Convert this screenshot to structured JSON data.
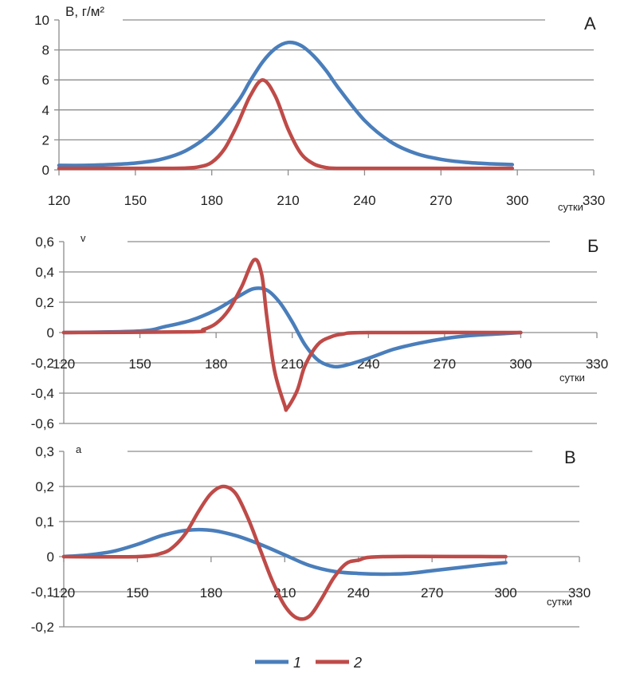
{
  "chart_data": [
    {
      "type": "line",
      "panel_label": "А",
      "ylabel": "В, г/м²",
      "xlabel": "сутки",
      "xlim": [
        120,
        330
      ],
      "ylim": [
        0,
        10
      ],
      "x_ticks": [
        "120",
        "150",
        "180",
        "210",
        "240",
        "270",
        "300",
        "330"
      ],
      "y_ticks": [
        "0",
        "2",
        "4",
        "6",
        "8",
        "10"
      ],
      "grid": true,
      "series": [
        {
          "name": "1",
          "color": "#4a7ebb",
          "x": [
            120,
            130,
            140,
            150,
            160,
            170,
            180,
            190,
            195,
            200,
            205,
            210,
            215,
            220,
            225,
            230,
            240,
            250,
            260,
            270,
            280,
            290,
            298
          ],
          "y": [
            0.3,
            0.3,
            0.35,
            0.45,
            0.7,
            1.3,
            2.5,
            4.5,
            5.9,
            7.2,
            8.1,
            8.5,
            8.3,
            7.6,
            6.6,
            5.4,
            3.3,
            1.9,
            1.1,
            0.7,
            0.5,
            0.4,
            0.35
          ]
        },
        {
          "name": "2",
          "color": "#be4b48",
          "x": [
            120,
            140,
            160,
            170,
            175,
            180,
            185,
            190,
            195,
            200,
            205,
            210,
            215,
            220,
            225,
            230,
            250,
            270,
            298
          ],
          "y": [
            0.1,
            0.1,
            0.1,
            0.12,
            0.2,
            0.5,
            1.4,
            3.0,
            4.9,
            6.0,
            4.9,
            2.7,
            1.1,
            0.4,
            0.15,
            0.1,
            0.1,
            0.1,
            0.1
          ]
        }
      ]
    },
    {
      "type": "line",
      "panel_label": "Б",
      "ylabel": "v",
      "xlabel": "сутки",
      "xlim": [
        120,
        330
      ],
      "ylim": [
        -0.6,
        0.6
      ],
      "x_ticks": [
        "120",
        "150",
        "180",
        "210",
        "240",
        "270",
        "300",
        "330"
      ],
      "y_ticks": [
        "-0,6",
        "-0,4",
        "-0,2",
        "0",
        "0,2",
        "0,4",
        "0,6"
      ],
      "grid": true,
      "series": [
        {
          "name": "1",
          "color": "#4a7ebb",
          "x": [
            120,
            150,
            160,
            170,
            180,
            190,
            195,
            200,
            205,
            210,
            215,
            220,
            225,
            230,
            240,
            250,
            260,
            270,
            280,
            290,
            300
          ],
          "y": [
            0,
            0.01,
            0.04,
            0.08,
            0.15,
            0.25,
            0.29,
            0.28,
            0.2,
            0.07,
            -0.08,
            -0.18,
            -0.22,
            -0.22,
            -0.17,
            -0.11,
            -0.07,
            -0.04,
            -0.02,
            -0.01,
            0
          ]
        },
        {
          "name": "2",
          "color": "#be4b48",
          "x": [
            120,
            170,
            175,
            180,
            185,
            190,
            195,
            198,
            200,
            203,
            207,
            208,
            212,
            215,
            220,
            225,
            230,
            240,
            300
          ],
          "y": [
            0,
            0.005,
            0.02,
            0.06,
            0.15,
            0.3,
            0.48,
            0.38,
            0.1,
            -0.25,
            -0.48,
            -0.5,
            -0.38,
            -0.22,
            -0.08,
            -0.03,
            -0.01,
            0,
            0
          ]
        }
      ]
    },
    {
      "type": "line",
      "panel_label": "В",
      "ylabel": "a",
      "xlabel": "сутки",
      "xlim": [
        120,
        330
      ],
      "ylim": [
        -0.2,
        0.3
      ],
      "x_ticks": [
        "120",
        "150",
        "180",
        "210",
        "240",
        "270",
        "300",
        "330"
      ],
      "y_ticks": [
        "-0,2",
        "-0,1",
        "0",
        "0,1",
        "0,2",
        "0,3"
      ],
      "grid": true,
      "series": [
        {
          "name": "1",
          "color": "#4a7ebb",
          "x": [
            120,
            130,
            140,
            150,
            160,
            170,
            180,
            190,
            200,
            210,
            220,
            230,
            240,
            250,
            260,
            270,
            280,
            290,
            300
          ],
          "y": [
            0,
            0.005,
            0.015,
            0.035,
            0.06,
            0.075,
            0.075,
            0.06,
            0.035,
            0.005,
            -0.025,
            -0.042,
            -0.048,
            -0.05,
            -0.048,
            -0.04,
            -0.032,
            -0.024,
            -0.017
          ]
        },
        {
          "name": "2",
          "color": "#be4b48",
          "x": [
            120,
            150,
            160,
            165,
            170,
            175,
            180,
            185,
            190,
            195,
            200,
            205,
            210,
            215,
            220,
            225,
            230,
            235,
            240,
            250,
            300
          ],
          "y": [
            0,
            0,
            0.01,
            0.03,
            0.07,
            0.13,
            0.18,
            0.2,
            0.18,
            0.11,
            0.02,
            -0.07,
            -0.14,
            -0.175,
            -0.17,
            -0.12,
            -0.06,
            -0.02,
            -0.01,
            0,
            0
          ]
        }
      ]
    }
  ],
  "legend": [
    {
      "label": "1",
      "color": "#4a7ebb"
    },
    {
      "label": "2",
      "color": "#be4b48"
    }
  ]
}
